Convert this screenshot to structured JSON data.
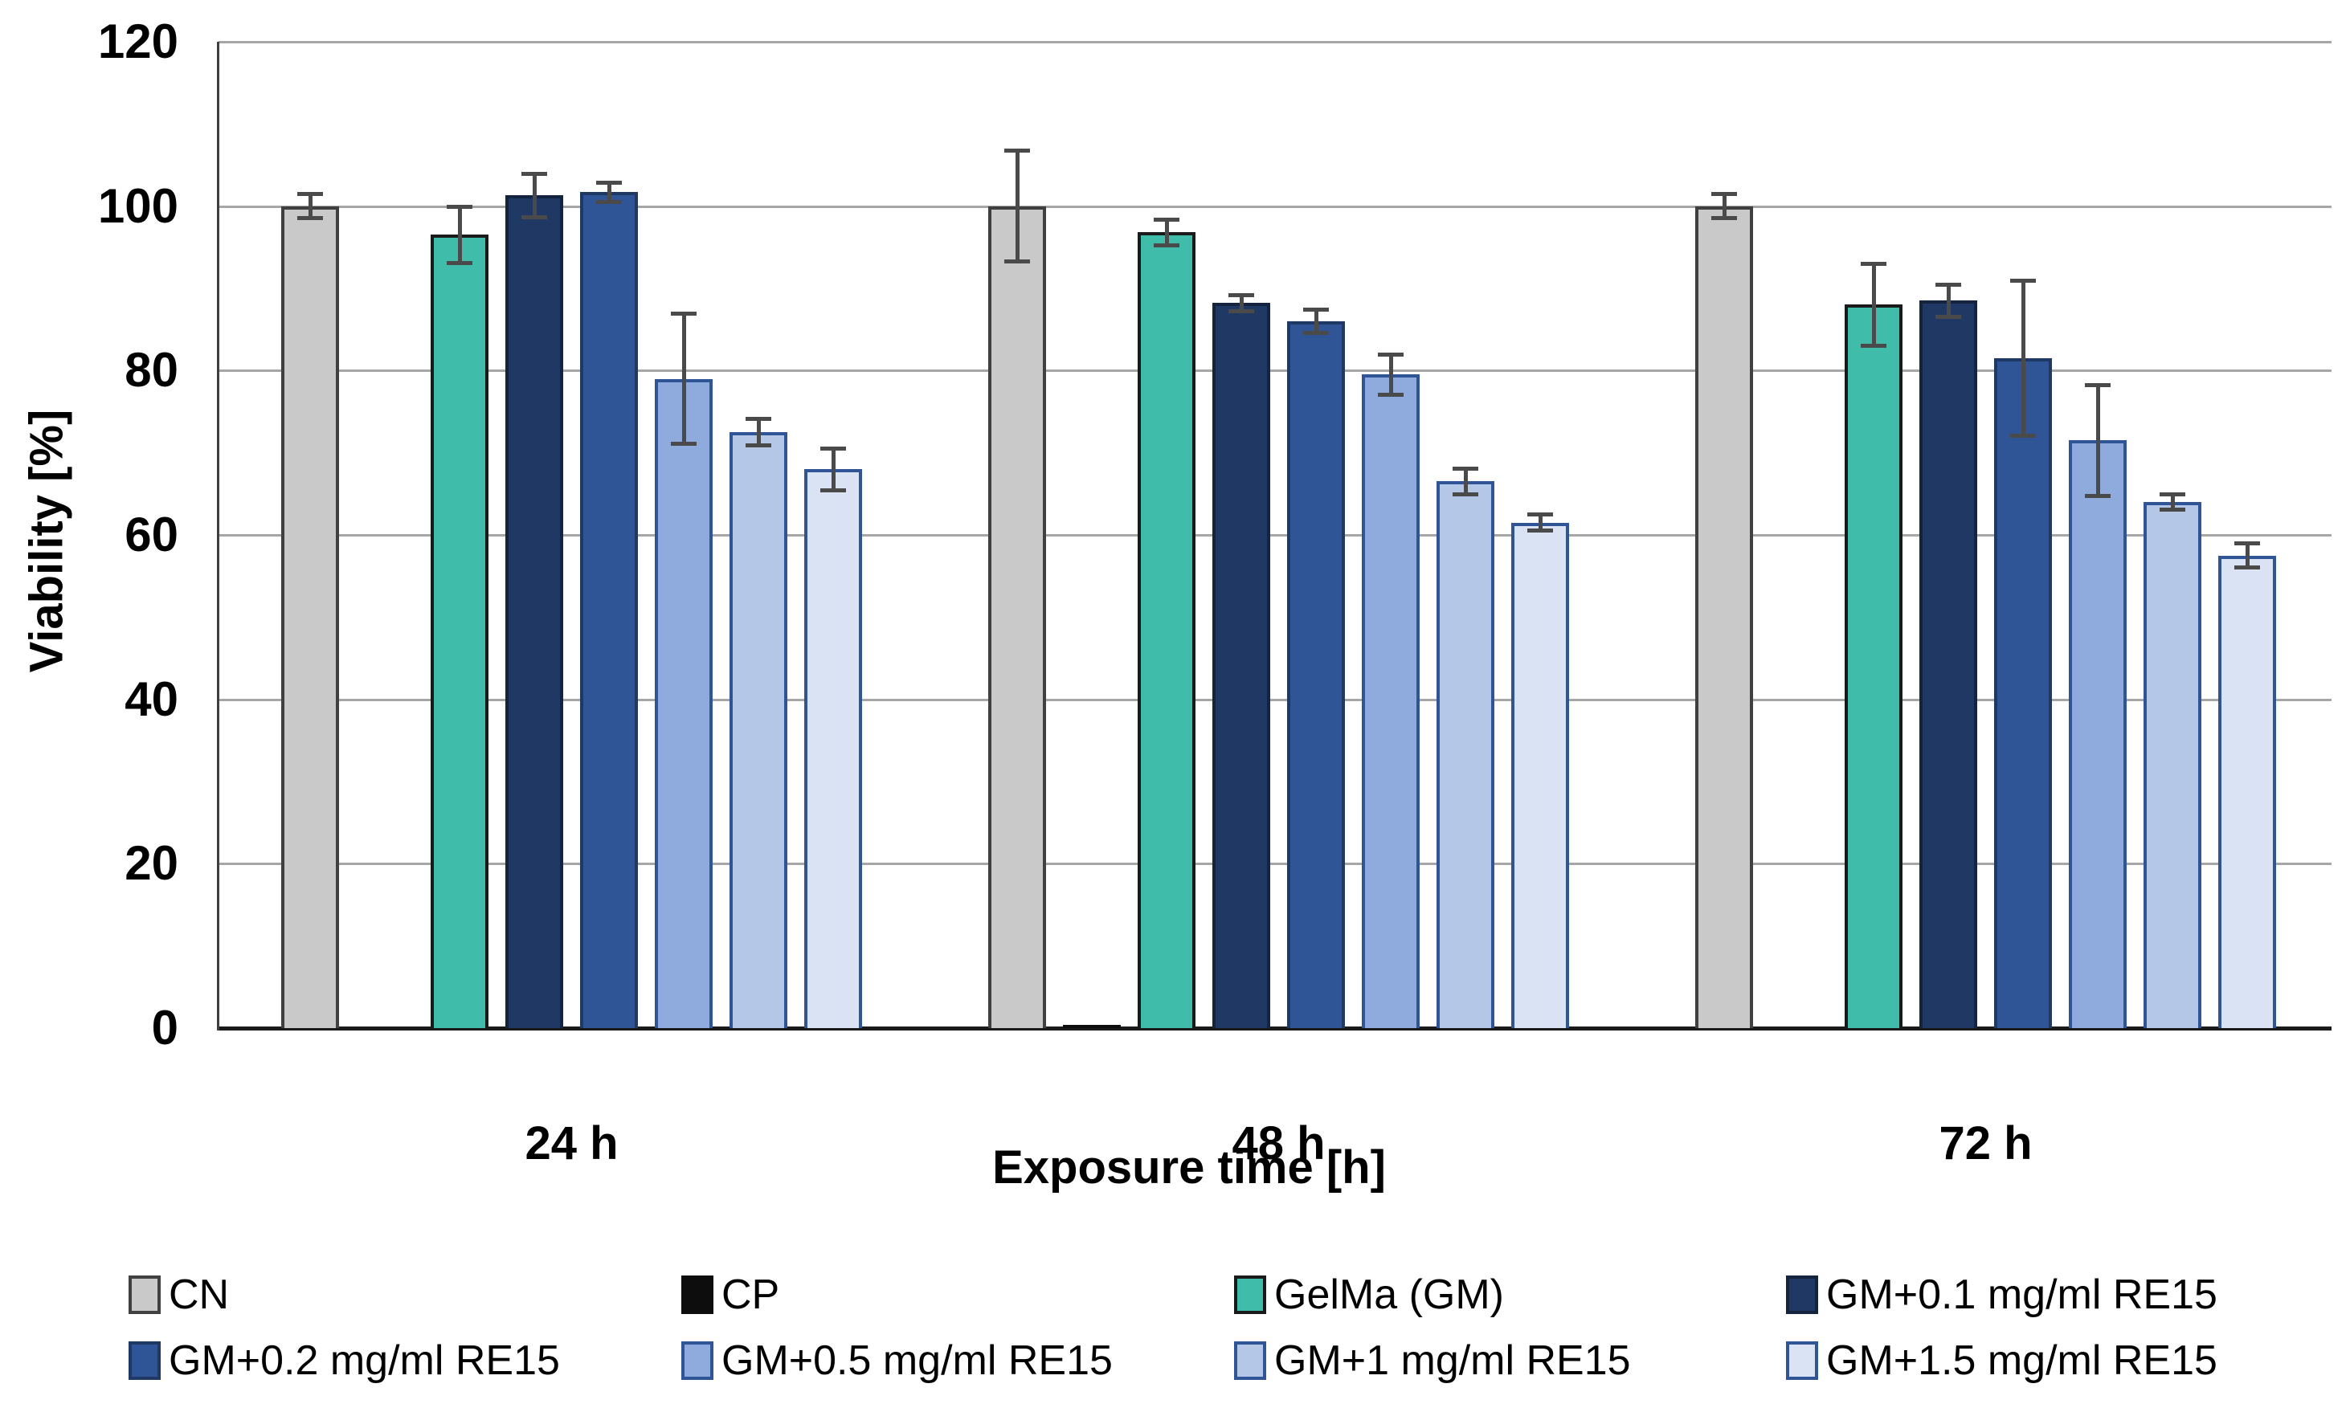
{
  "chart_data": {
    "type": "bar",
    "title": "",
    "xlabel": "Exposure time [h]",
    "ylabel": "Viability [%]",
    "ylim": [
      0,
      120
    ],
    "yticks": [
      0,
      20,
      40,
      60,
      80,
      100,
      120
    ],
    "grid": "horizontal",
    "legend_position": "bottom",
    "legend_rows": 2,
    "legend_columns": 4,
    "categories": [
      "24 h",
      "48 h",
      "72 h"
    ],
    "series": [
      {
        "name": "CN",
        "fill": "#c9c9c9",
        "border": "#404040",
        "values": [
          100,
          100,
          100
        ],
        "errors": [
          1.5,
          6.8,
          1.5
        ]
      },
      {
        "name": "CP",
        "fill": "#0d0d0d",
        "border": "#0d0d0d",
        "values": [
          0,
          0.4,
          0
        ],
        "errors": [
          0,
          0,
          0
        ]
      },
      {
        "name": "GelMa (GM)",
        "fill": "#40bcab",
        "border": "#1a1a1a",
        "values": [
          96.5,
          96.8,
          88
        ],
        "errors": [
          3.5,
          1.6,
          5
        ]
      },
      {
        "name": "GM+0.1 mg/ml RE15",
        "fill": "#1f3864",
        "border": "#14243f",
        "values": [
          101.3,
          88.2,
          88.5
        ],
        "errors": [
          2.7,
          1,
          2
        ]
      },
      {
        "name": "GM+0.2 mg/ml RE15",
        "fill": "#2f5597",
        "border": "#1f3864",
        "values": [
          101.7,
          86,
          81.5
        ],
        "errors": [
          1.2,
          1.5,
          9.5
        ]
      },
      {
        "name": "GM+0.5 mg/ml RE15",
        "fill": "#8faadc",
        "border": "#2f5597",
        "values": [
          79,
          79.5,
          71.5
        ],
        "errors": [
          8,
          2.5,
          6.8
        ]
      },
      {
        "name": "GM+1 mg/ml RE15",
        "fill": "#b4c7e7",
        "border": "#2f5597",
        "values": [
          72.5,
          66.5,
          64
        ],
        "errors": [
          1.7,
          1.6,
          1
        ]
      },
      {
        "name": "GM+1.5 mg/ml RE15",
        "fill": "#dae3f3",
        "border": "#2f5597",
        "values": [
          68,
          61.5,
          57.5
        ],
        "errors": [
          2.6,
          1,
          1.5
        ]
      }
    ],
    "error_bar_color": "#4a4a4a",
    "gridline_color": "#a6a6a6",
    "axis_line_color": "#404040"
  }
}
